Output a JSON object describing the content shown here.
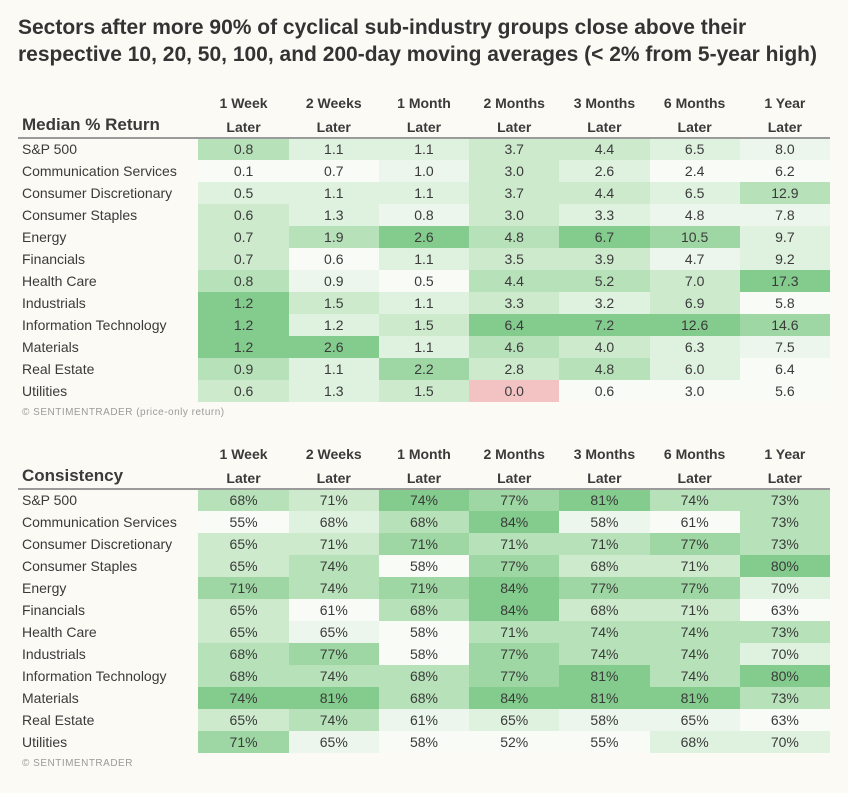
{
  "title": "Sectors after more 90% of cyclical sub-industry groups close above their respective 10, 20, 50, 100, and 200-day moving averages (< 2% from 5-year high)",
  "columns_top": [
    "1 Week",
    "2 Weeks",
    "1 Month",
    "2 Months",
    "3 Months",
    "6 Months",
    "1 Year"
  ],
  "columns_bot": [
    "Later",
    "Later",
    "Later",
    "Later",
    "Later",
    "Later",
    "Later"
  ],
  "footnote1": "© SENTIMENTRADER  (price-only return)",
  "footnote2": "© SENTIMENTRADER",
  "colors": {
    "bg_page": "#fcfaf4",
    "heat_green_scale": [
      "#f8fbf6",
      "#ecf6ec",
      "#dff1df",
      "#cdeacd",
      "#b7e1b9",
      "#9ed7a3",
      "#84cc8d"
    ],
    "heat_red": "#f3c3c4",
    "text": "#3a3a3a"
  },
  "tables": [
    {
      "section_label": "Median % Return",
      "value_suffix": "",
      "decimals": 1,
      "rows": [
        {
          "label": "S&P 500",
          "values": [
            0.8,
            1.1,
            1.1,
            3.7,
            4.4,
            6.5,
            8.0
          ]
        },
        {
          "label": "Communication Services",
          "values": [
            0.1,
            0.7,
            1.0,
            3.0,
            2.6,
            2.4,
            6.2
          ]
        },
        {
          "label": "Consumer Discretionary",
          "values": [
            0.5,
            1.1,
            1.1,
            3.7,
            4.4,
            6.5,
            12.9
          ]
        },
        {
          "label": "Consumer Staples",
          "values": [
            0.6,
            1.3,
            0.8,
            3.0,
            3.3,
            4.8,
            7.8
          ]
        },
        {
          "label": "Energy",
          "values": [
            0.7,
            1.9,
            2.6,
            4.8,
            6.7,
            10.5,
            9.7
          ]
        },
        {
          "label": "Financials",
          "values": [
            0.7,
            0.6,
            1.1,
            3.5,
            3.9,
            4.7,
            9.2
          ]
        },
        {
          "label": "Health Care",
          "values": [
            0.8,
            0.9,
            0.5,
            4.4,
            5.2,
            7.0,
            17.3
          ]
        },
        {
          "label": "Industrials",
          "values": [
            1.2,
            1.5,
            1.1,
            3.3,
            3.2,
            6.9,
            5.8
          ]
        },
        {
          "label": "Information Technology",
          "values": [
            1.2,
            1.2,
            1.5,
            6.4,
            7.2,
            12.6,
            14.6
          ]
        },
        {
          "label": "Materials",
          "values": [
            1.2,
            2.6,
            1.1,
            4.6,
            4.0,
            6.3,
            7.5
          ]
        },
        {
          "label": "Real Estate",
          "values": [
            0.9,
            1.1,
            2.2,
            2.8,
            4.8,
            6.0,
            6.4
          ]
        },
        {
          "label": "Utilities",
          "values": [
            0.6,
            1.3,
            1.5,
            0.0,
            0.6,
            3.0,
            5.6
          ]
        }
      ]
    },
    {
      "section_label": "Consistency",
      "value_suffix": "%",
      "decimals": 0,
      "rows": [
        {
          "label": "S&P 500",
          "values": [
            68,
            71,
            74,
            77,
            81,
            74,
            73
          ]
        },
        {
          "label": "Communication Services",
          "values": [
            55,
            68,
            68,
            84,
            58,
            61,
            73
          ]
        },
        {
          "label": "Consumer Discretionary",
          "values": [
            65,
            71,
            71,
            71,
            71,
            77,
            73
          ]
        },
        {
          "label": "Consumer Staples",
          "values": [
            65,
            74,
            58,
            77,
            68,
            71,
            80
          ]
        },
        {
          "label": "Energy",
          "values": [
            71,
            74,
            71,
            84,
            77,
            77,
            70
          ]
        },
        {
          "label": "Financials",
          "values": [
            65,
            61,
            68,
            84,
            68,
            71,
            63
          ]
        },
        {
          "label": "Health Care",
          "values": [
            65,
            65,
            58,
            71,
            74,
            74,
            73
          ]
        },
        {
          "label": "Industrials",
          "values": [
            68,
            77,
            58,
            77,
            74,
            74,
            70
          ]
        },
        {
          "label": "Information Technology",
          "values": [
            68,
            74,
            68,
            77,
            81,
            74,
            80
          ]
        },
        {
          "label": "Materials",
          "values": [
            74,
            81,
            68,
            84,
            81,
            81,
            73
          ]
        },
        {
          "label": "Real Estate",
          "values": [
            65,
            74,
            61,
            65,
            58,
            65,
            63
          ]
        },
        {
          "label": "Utilities",
          "values": [
            71,
            65,
            58,
            52,
            55,
            68,
            70
          ]
        }
      ]
    }
  ]
}
